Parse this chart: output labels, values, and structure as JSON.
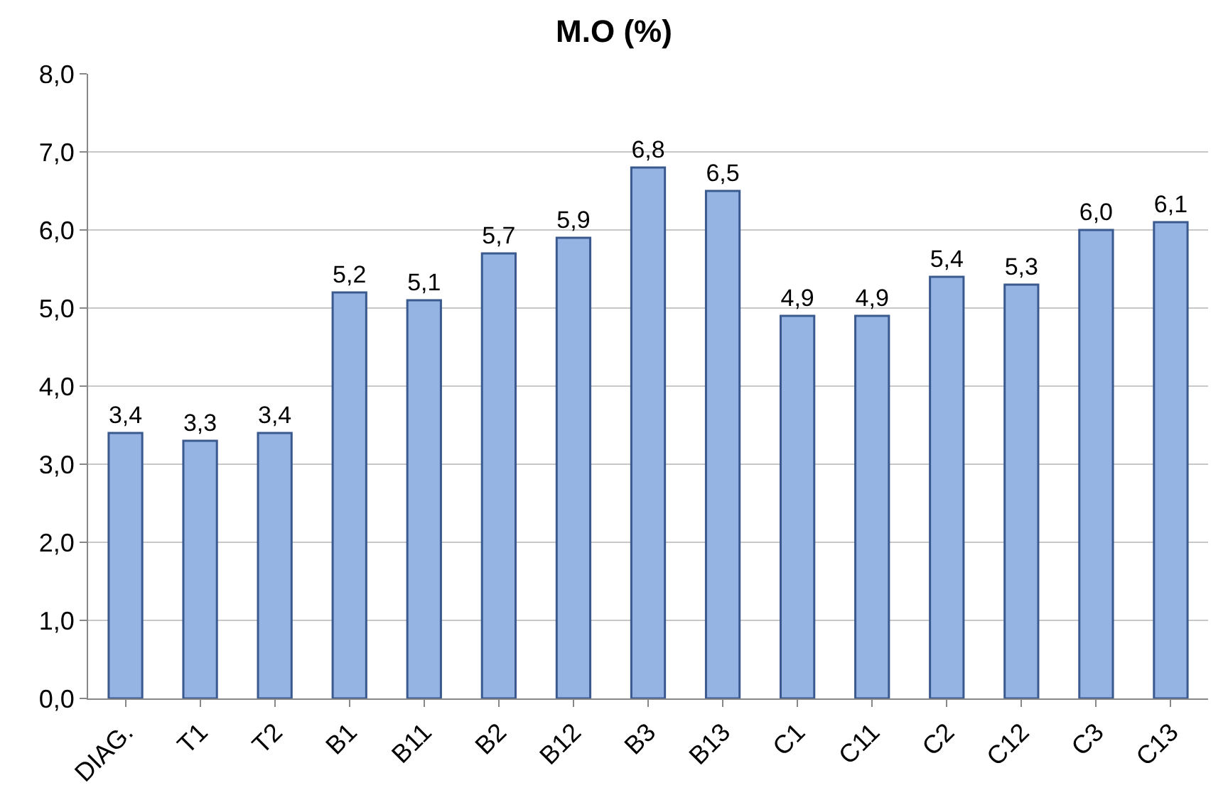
{
  "chart_data": {
    "type": "bar",
    "title": "M.O (%)",
    "categories": [
      "DIAG.",
      "T1",
      "T2",
      "B1",
      "B11",
      "B2",
      "B12",
      "B3",
      "B13",
      "C1",
      "C11",
      "C2",
      "C12",
      "C3",
      "C13"
    ],
    "values": [
      3.4,
      3.3,
      3.4,
      5.2,
      5.1,
      5.7,
      5.9,
      6.8,
      6.5,
      4.9,
      4.9,
      5.4,
      5.3,
      6.0,
      6.1
    ],
    "value_labels": [
      "3,4",
      "3,3",
      "3,4",
      "5,2",
      "5,1",
      "5,7",
      "5,9",
      "6,8",
      "6,5",
      "4,9",
      "4,9",
      "5,4",
      "5,3",
      "6,0",
      "6,1"
    ],
    "color": "#95b3e3",
    "ylim": [
      0,
      8
    ],
    "yticks": [
      {
        "value": 0,
        "label": "0,0"
      },
      {
        "value": 1,
        "label": "1,0"
      },
      {
        "value": 2,
        "label": "2,0"
      },
      {
        "value": 3,
        "label": "3,0"
      },
      {
        "value": 4,
        "label": "4,0"
      },
      {
        "value": 5,
        "label": "5,0"
      },
      {
        "value": 6,
        "label": "6,0"
      },
      {
        "value": 7,
        "label": "7,0"
      },
      {
        "value": 8,
        "label": "8,0"
      }
    ],
    "grid": "y",
    "legend": false
  }
}
